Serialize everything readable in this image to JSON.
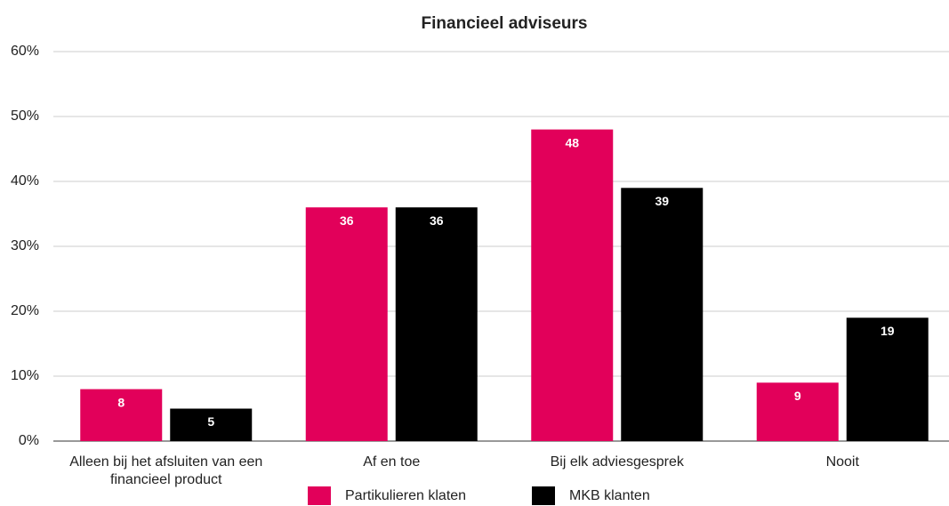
{
  "chart_data": {
    "type": "bar",
    "title": "Financieel adviseurs",
    "categories": [
      "Alleen bij het afsluiten van een financieel product",
      "Af en toe",
      "Bij elk adviesgesprek",
      "Nooit"
    ],
    "series": [
      {
        "name": "Partikulieren klaten",
        "color": "#e2005a",
        "values": [
          8,
          36,
          48,
          9
        ]
      },
      {
        "name": "MKB klanten",
        "color": "#000000",
        "values": [
          5,
          36,
          39,
          19
        ]
      }
    ],
    "ylim": [
      0,
      60
    ],
    "yticks": [
      {
        "value": 0,
        "label": "0%"
      },
      {
        "value": 10,
        "label": "10%"
      },
      {
        "value": 20,
        "label": "20%"
      },
      {
        "value": 30,
        "label": "30%"
      },
      {
        "value": 40,
        "label": "40%"
      },
      {
        "value": 50,
        "label": "50%"
      },
      {
        "value": 60,
        "label": "60%"
      }
    ],
    "grid": true,
    "legend": "bottom"
  }
}
